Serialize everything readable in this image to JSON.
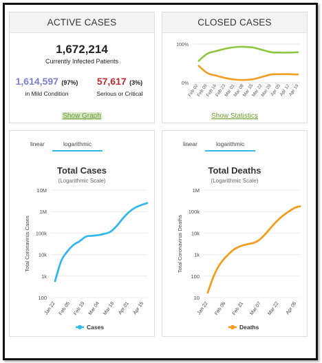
{
  "active_cases": {
    "header": "ACTIVE CASES",
    "total": "1,672,214",
    "total_label": "Currently Infected Patients",
    "mild_value": "1,614,597",
    "mild_pct": "(97%)",
    "mild_label": "in Mild Condition",
    "serious_value": "57,617",
    "serious_pct": "(3%)",
    "serious_label": "Serious or Critical",
    "link": "Show Graph"
  },
  "closed_cases": {
    "header": "CLOSED CASES",
    "y_ticks": [
      "100%",
      "0%"
    ],
    "x_ticks": [
      "Feb 02",
      "Feb 09",
      "Feb 16",
      "Feb 23",
      "Mar 01",
      "Mar 08",
      "Mar 15",
      "Mar 22",
      "Mar 29",
      "Apr 05",
      "Apr 12",
      "Apr 19"
    ],
    "link": "Show Statistics"
  },
  "cases_panel": {
    "tab_linear": "linear",
    "tab_log": "logarithmic",
    "title": "Total Cases",
    "subtitle": "(Logarithmic Scale)",
    "ylabel": "Total Coronavirus Cases",
    "legend": "Cases",
    "y_ticks": [
      "10M",
      "1M",
      "100k",
      "10k",
      "1k",
      "100"
    ],
    "x_ticks": [
      "Jan 22",
      "Feb 05",
      "Feb 19",
      "Mar 04",
      "Mar 18",
      "Apr 01",
      "Apr 15"
    ]
  },
  "deaths_panel": {
    "tab_linear": "linear",
    "tab_log": "logarithmic",
    "title": "Total Deaths",
    "subtitle": "(Logarithmic Scale)",
    "ylabel": "Total Coronavirus Deaths",
    "legend": "Deaths",
    "y_ticks": [
      "1M",
      "100k",
      "10k",
      "1k",
      "100",
      "10"
    ],
    "x_ticks": [
      "Jan 22",
      "Feb 06",
      "Feb 21",
      "Mar 07",
      "Mar 22",
      "Apr 06"
    ]
  },
  "colors": {
    "cases_line": "#35b8e8",
    "deaths_line": "#f39c1e",
    "recovered_line": "#8cc63f",
    "closed_deaths_line": "#f39c1e",
    "mild": "#7b7bd6",
    "serious": "#c0292b",
    "link": "#6a9b2f"
  },
  "chart_data": [
    {
      "type": "line",
      "title": "Closed Cases",
      "x": [
        "Feb 02",
        "Feb 09",
        "Feb 16",
        "Feb 23",
        "Mar 01",
        "Mar 08",
        "Mar 15",
        "Mar 22",
        "Mar 29",
        "Apr 05",
        "Apr 12",
        "Apr 19"
      ],
      "ylim": [
        0,
        100
      ],
      "series": [
        {
          "values": [
            55,
            75,
            82,
            88,
            92,
            93,
            91,
            85,
            79,
            78,
            78,
            79
          ]
        },
        {
          "values": [
            45,
            25,
            18,
            12,
            8,
            7,
            9,
            15,
            21,
            22,
            22,
            21
          ]
        }
      ]
    },
    {
      "type": "line",
      "title": "Total Cases",
      "ylabel": "Total Coronavirus Cases",
      "scale": "log",
      "ylim": [
        100,
        10000000
      ],
      "x": [
        "Jan 22",
        "Jan 27",
        "Feb 01",
        "Feb 05",
        "Feb 10",
        "Feb 15",
        "Feb 19",
        "Feb 25",
        "Mar 04",
        "Mar 10",
        "Mar 18",
        "Mar 25",
        "Apr 01",
        "Apr 08",
        "Apr 15",
        "Apr 21"
      ],
      "series": [
        {
          "name": "Cases",
          "values": [
            580,
            5000,
            14000,
            28000,
            42000,
            68000,
            75000,
            80000,
            92000,
            115000,
            210000,
            470000,
            930000,
            1500000,
            2000000,
            2500000
          ]
        }
      ]
    },
    {
      "type": "line",
      "title": "Total Deaths",
      "ylabel": "Total Coronavirus Deaths",
      "scale": "log",
      "ylim": [
        10,
        1000000
      ],
      "x": [
        "Jan 22",
        "Jan 27",
        "Feb 01",
        "Feb 06",
        "Feb 11",
        "Feb 16",
        "Feb 21",
        "Feb 26",
        "Mar 02",
        "Mar 07",
        "Mar 12",
        "Mar 17",
        "Mar 22",
        "Mar 27",
        "Apr 01",
        "Apr 06",
        "Apr 11",
        "Apr 16",
        "Apr 21"
      ],
      "series": [
        {
          "name": "Deaths",
          "values": [
            17,
            80,
            260,
            560,
            1010,
            1665,
            2250,
            2760,
            3120,
            3550,
            4720,
            7900,
            14600,
            27300,
            47000,
            74000,
            108000,
            150000,
            177000
          ]
        }
      ]
    }
  ]
}
